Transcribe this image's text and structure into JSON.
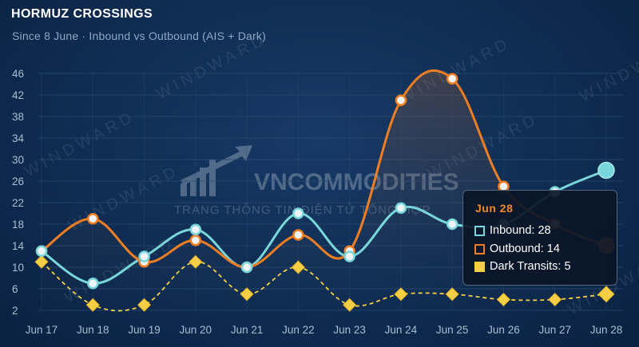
{
  "header": {
    "title": "HORMUZ CROSSINGS",
    "subtitle": "Since 8 June · Inbound vs Outbound (AIS + Dark)"
  },
  "watermarks": {
    "repeat_text": "WINDWARD",
    "logo_name": "VNCOMMODITIES",
    "logo_tagline": "TRANG THÔNG TIN ĐIỆN TỬ TỔNG HỢP"
  },
  "colors": {
    "inbound": "#79d6da",
    "outbound": "#ef7e22",
    "dark_transits": "#f4cf45",
    "grid": "#2b4a70",
    "tick_text": "#a9bdd3"
  },
  "tooltip": {
    "date": "Jun 28",
    "rows": [
      {
        "label": "Inbound: 28",
        "color": "#79d6da"
      },
      {
        "label": "Outbound: 14",
        "color": "#ef7e22"
      },
      {
        "label": "Dark Transits: 5",
        "color": "#f4cf45"
      }
    ]
  },
  "chart_data": {
    "type": "line",
    "title": "HORMUZ CROSSINGS",
    "subtitle": "Since 8 June · Inbound vs Outbound (AIS + Dark)",
    "categories": [
      "Jun 17",
      "Jun 18",
      "Jun 19",
      "Jun 20",
      "Jun 21",
      "Jun 22",
      "Jun 23",
      "Jun 24",
      "Jun 25",
      "Jun 26",
      "Jun 27",
      "Jun 28"
    ],
    "y_ticks": [
      "2",
      "6",
      "10",
      "14",
      "18",
      "22",
      "26",
      "30",
      "34",
      "38",
      "42",
      "46"
    ],
    "ylim": [
      2,
      46
    ],
    "grid": true,
    "series": [
      {
        "name": "Inbound",
        "values": [
          13,
          7,
          12,
          17,
          10,
          20,
          12,
          21,
          18,
          18,
          24,
          28
        ]
      },
      {
        "name": "Outbound",
        "values": [
          13,
          19,
          11,
          15,
          10,
          16,
          13,
          41,
          45,
          25,
          18,
          14
        ]
      },
      {
        "name": "Dark Transits",
        "values": [
          11,
          3,
          3,
          11,
          5,
          10,
          3,
          5,
          5,
          4,
          4,
          5
        ]
      }
    ]
  }
}
